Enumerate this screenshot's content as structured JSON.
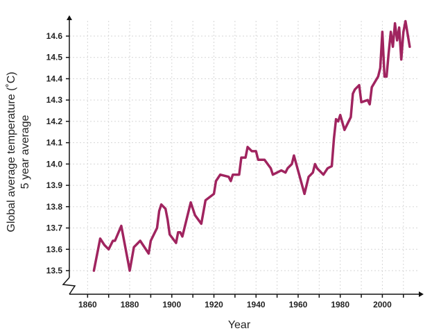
{
  "chart_data": {
    "type": "line",
    "xlabel": "Year",
    "ylabel_line1": "Global average temperature (˚C)",
    "ylabel_line2": "5 year average",
    "xlim": [
      1851,
      2016
    ],
    "ylim": [
      13.45,
      14.68
    ],
    "x_ticks": [
      1860,
      1880,
      1900,
      1920,
      1940,
      1960,
      1980,
      2000
    ],
    "y_ticks": [
      13.5,
      13.6,
      13.7,
      13.8,
      13.9,
      14.0,
      14.1,
      14.2,
      14.3,
      14.4,
      14.5,
      14.6
    ],
    "y_axis_break": true,
    "grid": true,
    "series": [
      {
        "color": "#a0245f",
        "x": [
          1863,
          1866,
          1868,
          1870,
          1872,
          1873,
          1876,
          1880,
          1882,
          1885,
          1889,
          1890,
          1893,
          1894,
          1895,
          1897,
          1898,
          1899,
          1902,
          1903,
          1904,
          1905,
          1909,
          1911,
          1914,
          1916,
          1920,
          1921,
          1923,
          1927,
          1928,
          1929,
          1932,
          1933,
          1935,
          1936,
          1938,
          1940,
          1941,
          1944,
          1947,
          1948,
          1952,
          1954,
          1955,
          1957,
          1958,
          1963,
          1965,
          1967,
          1968,
          1969,
          1972,
          1974,
          1976,
          1977,
          1978,
          1979,
          1980,
          1982,
          1985,
          1986,
          1987,
          1989,
          1990,
          1993,
          1994,
          1995,
          1998,
          1999,
          2000,
          2001,
          2002,
          2003,
          2004,
          2005,
          2006,
          2007,
          2008,
          2009,
          2010,
          2011,
          2013
        ],
        "values": [
          13.5,
          13.65,
          13.62,
          13.6,
          13.64,
          13.64,
          13.71,
          13.5,
          13.61,
          13.64,
          13.58,
          13.64,
          13.7,
          13.78,
          13.81,
          13.79,
          13.74,
          13.67,
          13.63,
          13.68,
          13.68,
          13.66,
          13.82,
          13.76,
          13.72,
          13.83,
          13.86,
          13.92,
          13.95,
          13.94,
          13.92,
          13.95,
          13.95,
          14.03,
          14.03,
          14.08,
          14.06,
          14.06,
          14.02,
          14.02,
          13.98,
          13.95,
          13.97,
          13.96,
          13.98,
          14.0,
          14.04,
          13.86,
          13.94,
          13.96,
          14.0,
          13.98,
          13.95,
          13.98,
          13.99,
          14.12,
          14.21,
          14.2,
          14.23,
          14.16,
          14.22,
          14.33,
          14.35,
          14.37,
          14.29,
          14.3,
          14.28,
          14.36,
          14.41,
          14.45,
          14.62,
          14.41,
          14.41,
          14.52,
          14.62,
          14.55,
          14.66,
          14.58,
          14.64,
          14.49,
          14.62,
          14.67,
          14.55
        ]
      }
    ]
  },
  "colors": {
    "line": "#a0245f",
    "axis": "#111111",
    "grid": "#d6d6d6"
  }
}
